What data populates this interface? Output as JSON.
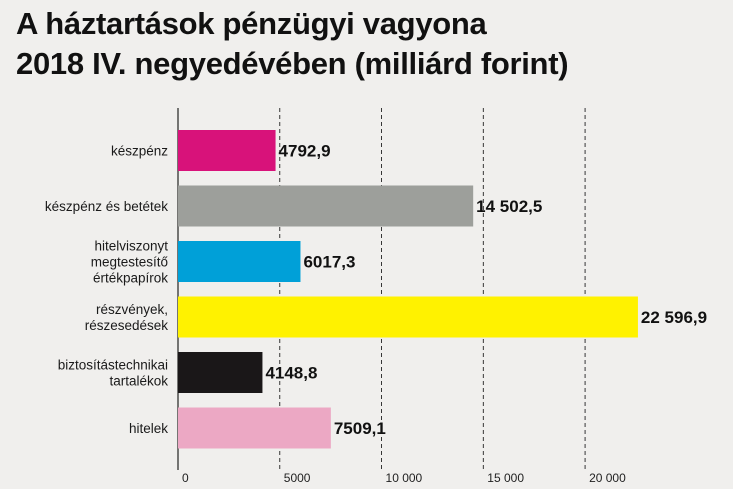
{
  "chart_data": {
    "type": "bar",
    "orientation": "horizontal",
    "title_lines": [
      "A háztartások pénzügyi vagyona",
      "2018 IV. negyedévében (milliárd forint)"
    ],
    "categories": [
      [
        "készpénz"
      ],
      [
        "készpénz és betétek"
      ],
      [
        "hitelviszonyt",
        "megtestesítő",
        "értékpapírok"
      ],
      [
        "részvények,",
        "részesedések"
      ],
      [
        "biztosítástechnikai",
        "tartalékok"
      ],
      [
        "hitelek"
      ]
    ],
    "values": [
      4792.9,
      14502.5,
      6017.3,
      22596.9,
      4148.8,
      7509.1
    ],
    "value_labels": [
      "4792,9",
      "14 502,5",
      "6017,3",
      "22 596,9",
      "4148,8",
      "7509,1"
    ],
    "colors": [
      "#d8127a",
      "#9d9f9b",
      "#00a0d8",
      "#fff200",
      "#1a1718",
      "#eca8c4"
    ],
    "xlim": [
      0,
      22600
    ],
    "xticks": [
      0,
      5000,
      10000,
      15000,
      20000
    ],
    "xtick_labels": [
      "0",
      "5000",
      "10 000",
      "15 000",
      "20 000"
    ],
    "grid": "vertical dashed",
    "legend": "none"
  }
}
